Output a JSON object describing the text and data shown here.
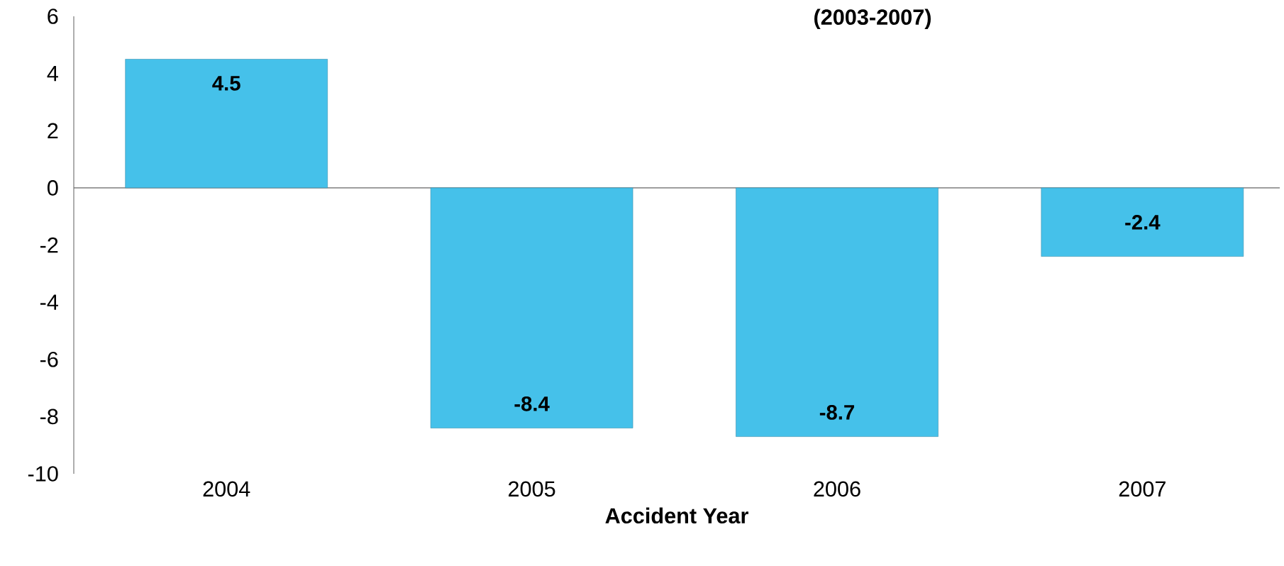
{
  "chart_data": {
    "type": "bar",
    "title": "(2003-2007)",
    "xlabel": "Accident Year",
    "categories": [
      "2004",
      "2005",
      "2006",
      "2007"
    ],
    "values": [
      4.5,
      -8.4,
      -8.7,
      -2.4
    ],
    "color": "#45c1ea",
    "ylim": [
      -10,
      6
    ],
    "yticks": [
      -10,
      -8,
      -6,
      -4,
      -2,
      0,
      2,
      4,
      6
    ],
    "data_labels": true
  }
}
